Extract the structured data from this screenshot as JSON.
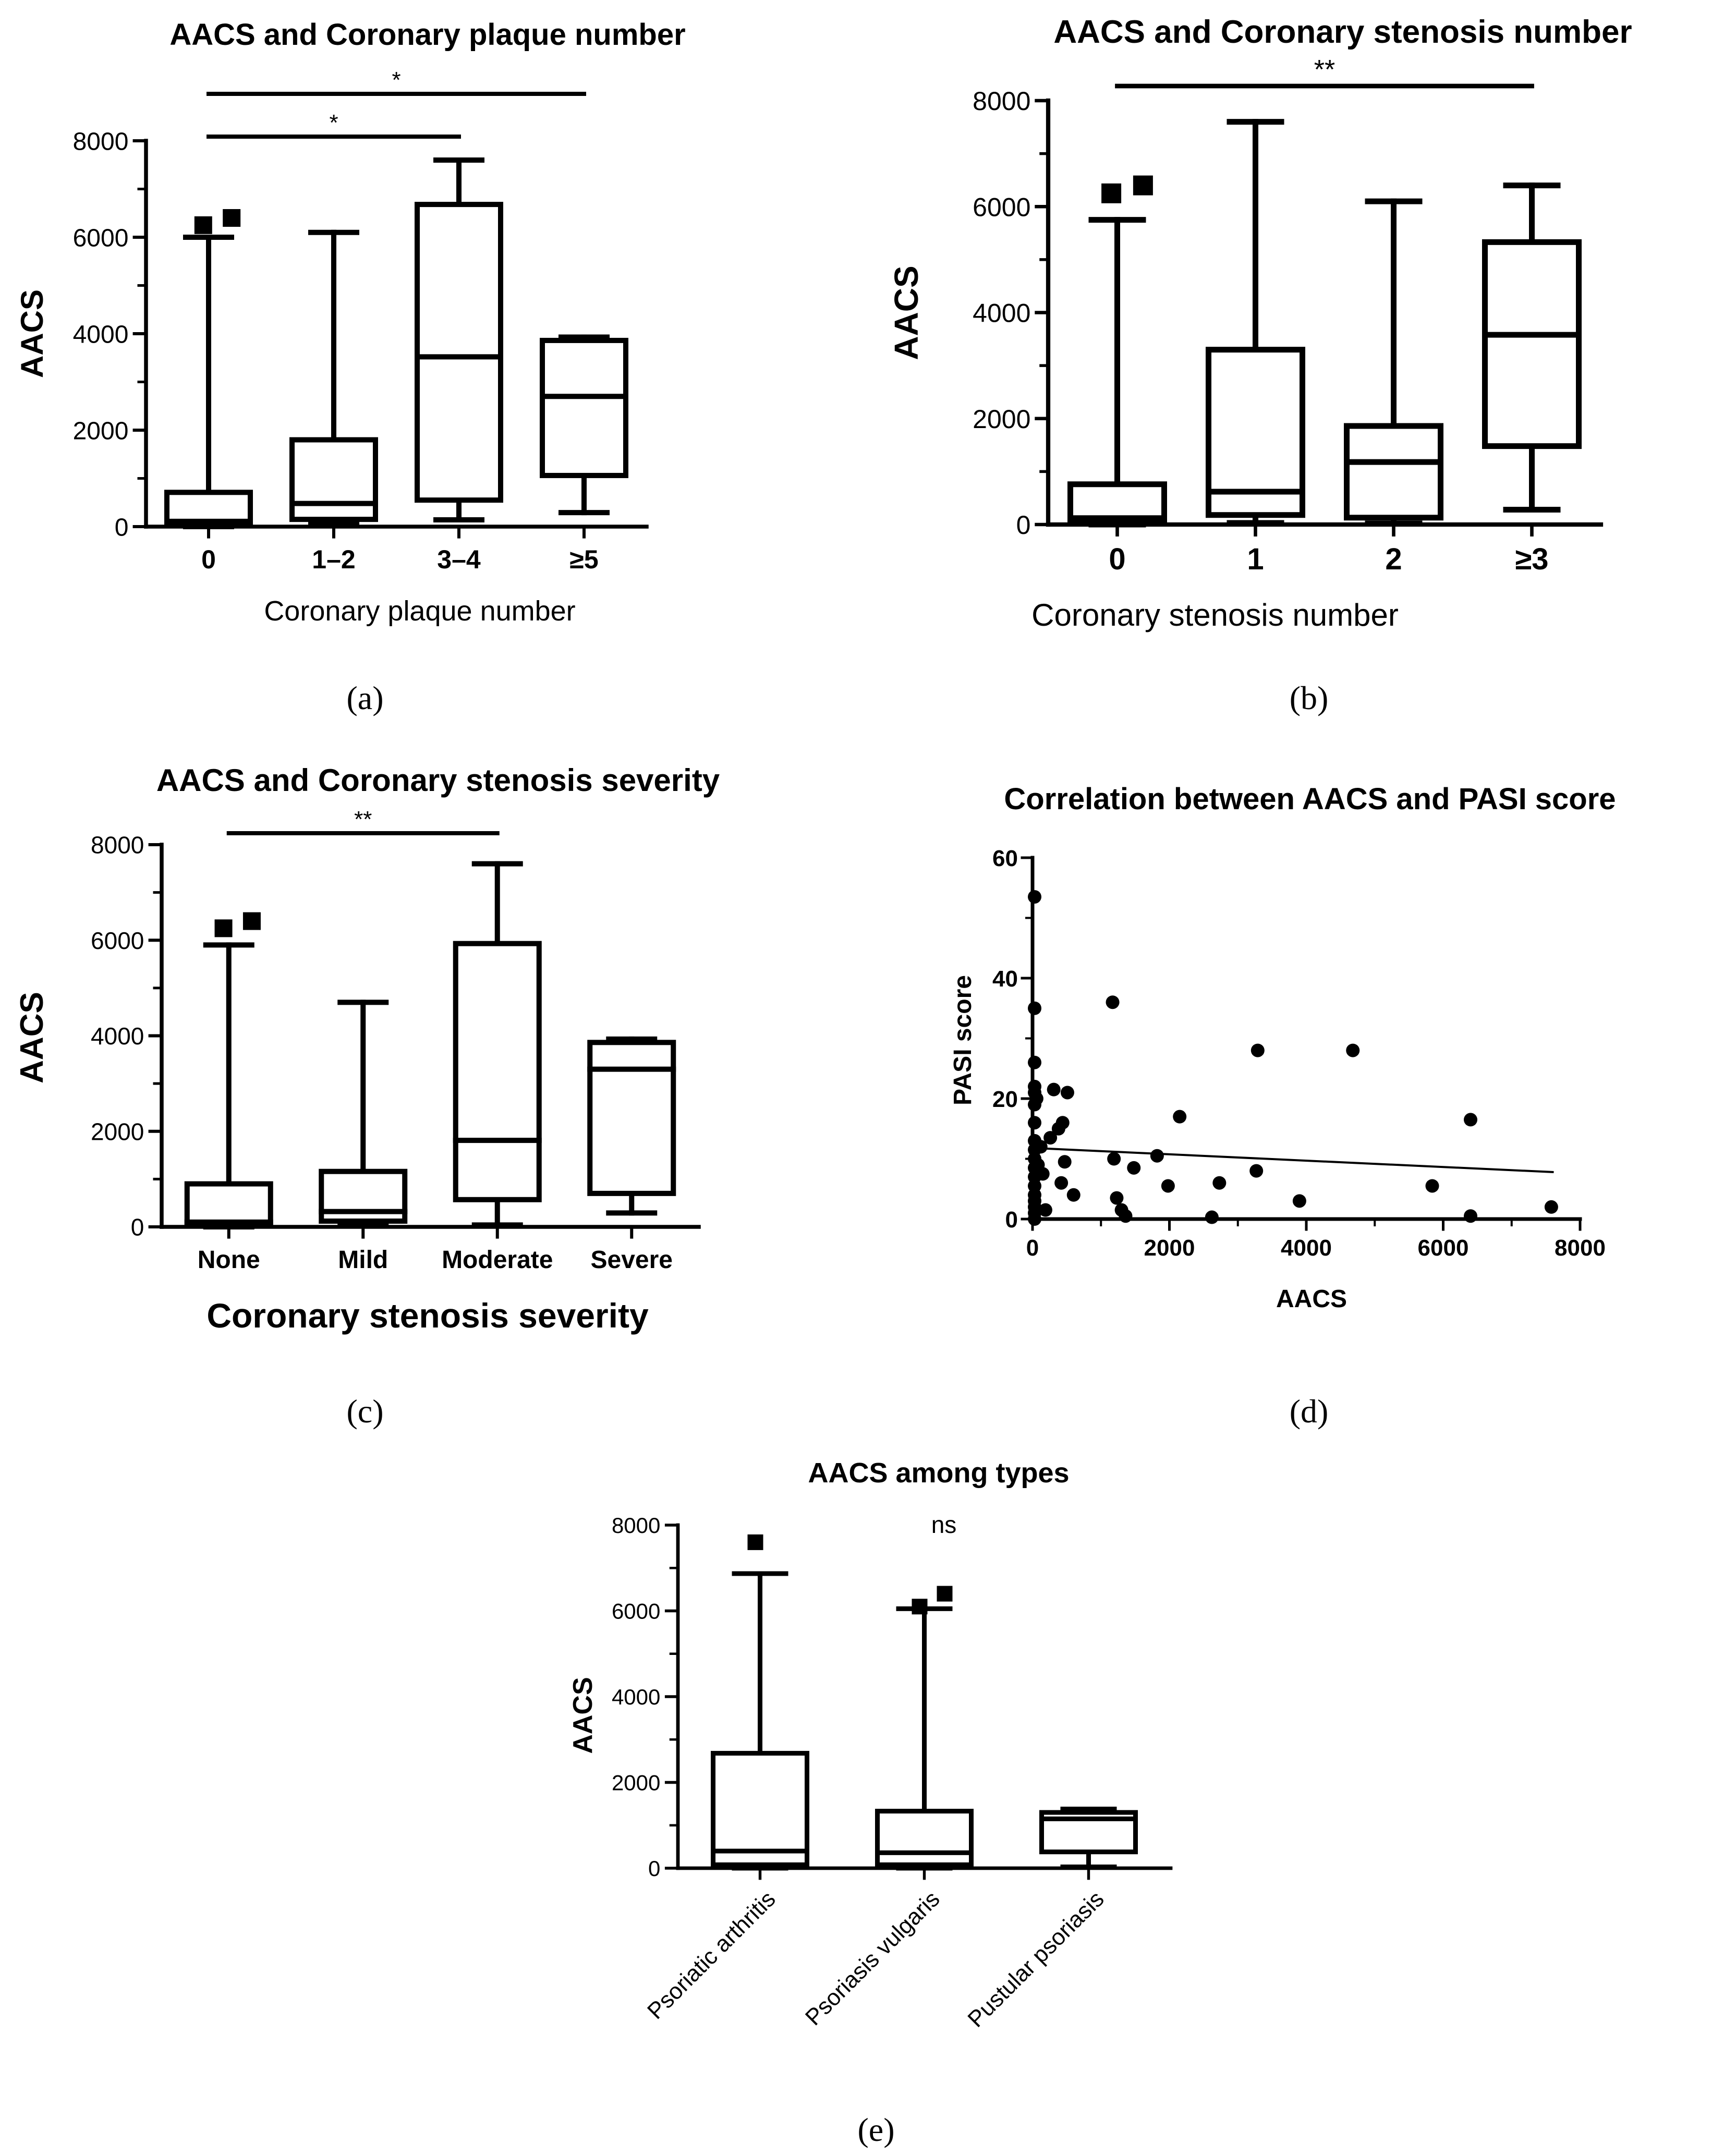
{
  "chart_data": [
    {
      "panel": "a",
      "type": "box",
      "title": "AACS and Coronary plaque number",
      "xlabel": "Coronary plaque number",
      "ylabel": "AACS",
      "categories": [
        "0",
        "1–2",
        "3–4",
        "≥5"
      ],
      "ylim": [
        0,
        8000
      ],
      "yticks": [
        0,
        2000,
        4000,
        6000,
        8000
      ],
      "tick_labels": [
        "0",
        "2000",
        "4000",
        "6000",
        "8000"
      ],
      "boxes": [
        {
          "min": 0,
          "q1": 40,
          "median": 110,
          "q3": 710,
          "max": 6000
        },
        {
          "min": 50,
          "q1": 150,
          "median": 480,
          "q3": 1800,
          "max": 6100
        },
        {
          "min": 140,
          "q1": 550,
          "median": 3520,
          "q3": 6680,
          "max": 7600
        },
        {
          "min": 290,
          "q1": 1060,
          "median": 2700,
          "q3": 3860,
          "max": 3930
        }
      ],
      "outliers": [
        {
          "category": 0,
          "values": [
            6250,
            6400
          ]
        }
      ],
      "significance": [
        {
          "from": 0,
          "to": 3,
          "label": "*"
        },
        {
          "from": 0,
          "to": 2,
          "label": "*"
        }
      ],
      "caption": "(a)"
    },
    {
      "panel": "b",
      "type": "box",
      "title": "AACS and Coronary stenosis number",
      "xlabel": "Coronary stenosis number",
      "ylabel": "AACS",
      "categories": [
        "0",
        "1",
        "2",
        "≥3"
      ],
      "ylim": [
        0,
        8000
      ],
      "yticks": [
        0,
        2000,
        4000,
        6000,
        8000
      ],
      "tick_labels": [
        "0",
        "2000",
        "4000",
        "6000",
        "8000"
      ],
      "boxes": [
        {
          "min": 0,
          "q1": 50,
          "median": 120,
          "q3": 760,
          "max": 5750
        },
        {
          "min": 30,
          "q1": 180,
          "median": 620,
          "q3": 3300,
          "max": 7600
        },
        {
          "min": 20,
          "q1": 130,
          "median": 1180,
          "q3": 1860,
          "max": 6100
        },
        {
          "min": 280,
          "q1": 1480,
          "median": 3580,
          "q3": 5330,
          "max": 6400
        }
      ],
      "outliers": [
        {
          "category": 0,
          "values": [
            6250,
            6400
          ]
        }
      ],
      "significance": [
        {
          "from": 0,
          "to": 3,
          "label": "**"
        }
      ],
      "caption": "(b)"
    },
    {
      "panel": "c",
      "type": "box",
      "title": "AACS and Coronary stenosis severity",
      "xlabel": "Coronary stenosis severity",
      "ylabel": "AACS",
      "categories": [
        "None",
        "Mild",
        "Moderate",
        "Severe"
      ],
      "ylim": [
        0,
        8000
      ],
      "yticks": [
        0,
        2000,
        4000,
        6000,
        8000
      ],
      "tick_labels": [
        "0",
        "2000",
        "4000",
        "6000",
        "8000"
      ],
      "boxes": [
        {
          "min": 0,
          "q1": 30,
          "median": 100,
          "q3": 900,
          "max": 5900
        },
        {
          "min": 20,
          "q1": 120,
          "median": 320,
          "q3": 1160,
          "max": 4700
        },
        {
          "min": 40,
          "q1": 570,
          "median": 1810,
          "q3": 5930,
          "max": 7600
        },
        {
          "min": 290,
          "q1": 700,
          "median": 3300,
          "q3": 3860,
          "max": 3930
        }
      ],
      "outliers": [
        {
          "category": 0,
          "values": [
            6250,
            6400
          ]
        }
      ],
      "significance": [
        {
          "from": 0,
          "to": 2,
          "label": "**"
        }
      ],
      "caption": "(c)"
    },
    {
      "panel": "d",
      "type": "scatter",
      "title": "Correlation between AACS and PASI score",
      "xlabel": "AACS",
      "ylabel": "PASI score",
      "xlim": [
        0,
        8000
      ],
      "ylim": [
        0,
        60
      ],
      "xticks": [
        0,
        2000,
        4000,
        6000,
        8000
      ],
      "xtick_labels": [
        "0",
        "2000",
        "4000",
        "6000",
        "8000"
      ],
      "yticks": [
        0,
        20,
        40,
        60
      ],
      "ytick_labels": [
        "0",
        "20",
        "40",
        "60"
      ],
      "points": [
        [
          0,
          53.5
        ],
        [
          0,
          35
        ],
        [
          0,
          26
        ],
        [
          0,
          22
        ],
        [
          0,
          21
        ],
        [
          0,
          19
        ],
        [
          0,
          16
        ],
        [
          0,
          13
        ],
        [
          0,
          11.5
        ],
        [
          0,
          10
        ],
        [
          0,
          8.5
        ],
        [
          0,
          7
        ],
        [
          0,
          5.5
        ],
        [
          0,
          4
        ],
        [
          0,
          3
        ],
        [
          0,
          2
        ],
        [
          0,
          1
        ],
        [
          0,
          0
        ],
        [
          60,
          20
        ],
        [
          80,
          9
        ],
        [
          120,
          12
        ],
        [
          150,
          7.5
        ],
        [
          190,
          1.5
        ],
        [
          260,
          13.5
        ],
        [
          310,
          21.5
        ],
        [
          380,
          15
        ],
        [
          420,
          6
        ],
        [
          440,
          16
        ],
        [
          470,
          9.5
        ],
        [
          510,
          21
        ],
        [
          600,
          4
        ],
        [
          1170,
          36
        ],
        [
          1190,
          10
        ],
        [
          1230,
          3.5
        ],
        [
          1300,
          1.5
        ],
        [
          1360,
          0.5
        ],
        [
          1480,
          8.5
        ],
        [
          1820,
          10.5
        ],
        [
          1980,
          5.5
        ],
        [
          2150,
          17
        ],
        [
          2620,
          0.3
        ],
        [
          2730,
          6
        ],
        [
          3270,
          8
        ],
        [
          3290,
          28
        ],
        [
          3900,
          3
        ],
        [
          4680,
          28
        ],
        [
          5840,
          5.5
        ],
        [
          6400,
          16.5
        ],
        [
          6400,
          0.5
        ],
        [
          7580,
          2
        ]
      ],
      "regression": {
        "x": [
          0,
          7600
        ],
        "y": [
          11.8,
          7.8
        ]
      },
      "caption": "(d)"
    },
    {
      "panel": "e",
      "type": "box",
      "title": "AACS among types",
      "ylabel": "AACS",
      "categories": [
        "Psoriatic arthritis",
        "Psoriasis vulgaris",
        "Pustular psoriasis"
      ],
      "ylim": [
        0,
        8000
      ],
      "yticks": [
        0,
        2000,
        4000,
        6000,
        8000
      ],
      "tick_labels": [
        "0",
        "2000",
        "4000",
        "6000",
        "8000"
      ],
      "boxes": [
        {
          "min": 0,
          "q1": 80,
          "median": 400,
          "q3": 2680,
          "max": 6870
        },
        {
          "min": 0,
          "q1": 80,
          "median": 360,
          "q3": 1330,
          "max": 6050
        },
        {
          "min": 30,
          "q1": 380,
          "median": 1150,
          "q3": 1300,
          "max": 1380
        }
      ],
      "outliers": [
        {
          "category": 0,
          "values": [
            7600
          ]
        },
        {
          "category": 1,
          "values": [
            6100,
            6400
          ]
        }
      ],
      "annotation": "ns",
      "caption": "(e)"
    }
  ]
}
